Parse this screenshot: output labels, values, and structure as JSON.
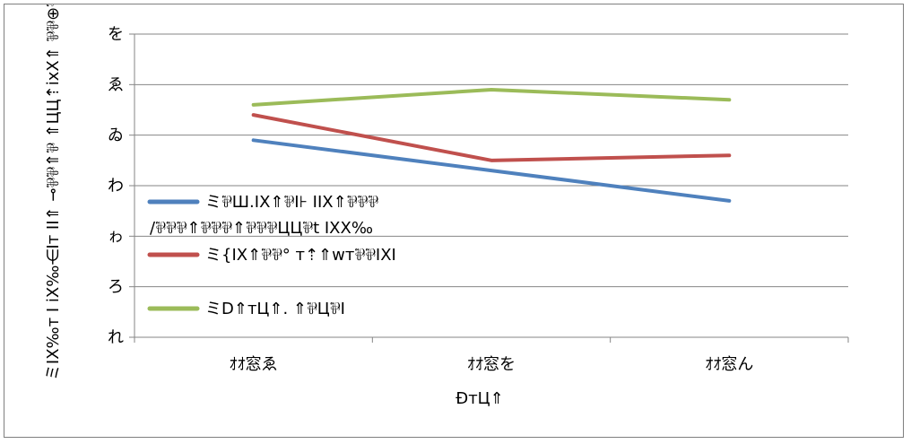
{
  "colors": {
    "series_blue": "#4F81BD",
    "series_red": "#C0504D",
    "series_green": "#9BBB59",
    "axis": "#868686",
    "grid": "#868686",
    "frame": "#7f7f7f"
  },
  "chart_data": {
    "type": "line",
    "title": "",
    "xlabel": "ÐтЦ⇑",
    "ylabel": "ミIX‰т I iX‰⋲Iт II⇑ ⊸⅌⅌⇑⅌  ⇑ЦЦ⇡ixX⇑ ⅌⅌⊕⅌⇑⊑",
    "categories": [
      "ｵｵ窓ゑ",
      "ｵｵ窓を",
      "ｵｵ窓ん"
    ],
    "y_tick_labels": [
      "れ",
      "ろ",
      "ゎ",
      "わ",
      "ゐ",
      "ゑ",
      "を"
    ],
    "ylim": [
      0,
      6
    ],
    "grid": true,
    "legend_position": "left-center",
    "series": [
      {
        "name": "ミ⅌Ш.IX⇑⅌I⊦ IIX⇑⅌⅌⅌ /⅌⅌⅌⇑⅌⅌⅌⇑⅌⅌⅌ЦЦ⅌t IXX‰",
        "legend_lines": [
          "ミ⅌Ш.IX⇑⅌I⊦ IIX⇑⅌⅌⅌",
          "/⅌⅌⅌⇑⅌⅌⅌⇑⅌⅌⅌ЦЦ⅌t IXX‰"
        ],
        "color": "#4F81BD",
        "values": [
          3.9,
          3.3,
          2.7
        ]
      },
      {
        "name": "ミ{IX⇑⅌⅌° т⇡⇑wт⅌⅌IXI",
        "legend_lines": [
          "ミ{IX⇑⅌⅌° т⇡⇑wт⅌⅌IXI"
        ],
        "color": "#C0504D",
        "values": [
          4.4,
          3.5,
          3.6
        ]
      },
      {
        "name": "ミD⇑тЦ⇑. ⇑⅌Ц⅌I",
        "legend_lines": [
          "ミD⇑тЦ⇑. ⇑⅌Ц⅌I"
        ],
        "color": "#9BBB59",
        "values": [
          4.6,
          4.9,
          4.7
        ]
      }
    ]
  }
}
